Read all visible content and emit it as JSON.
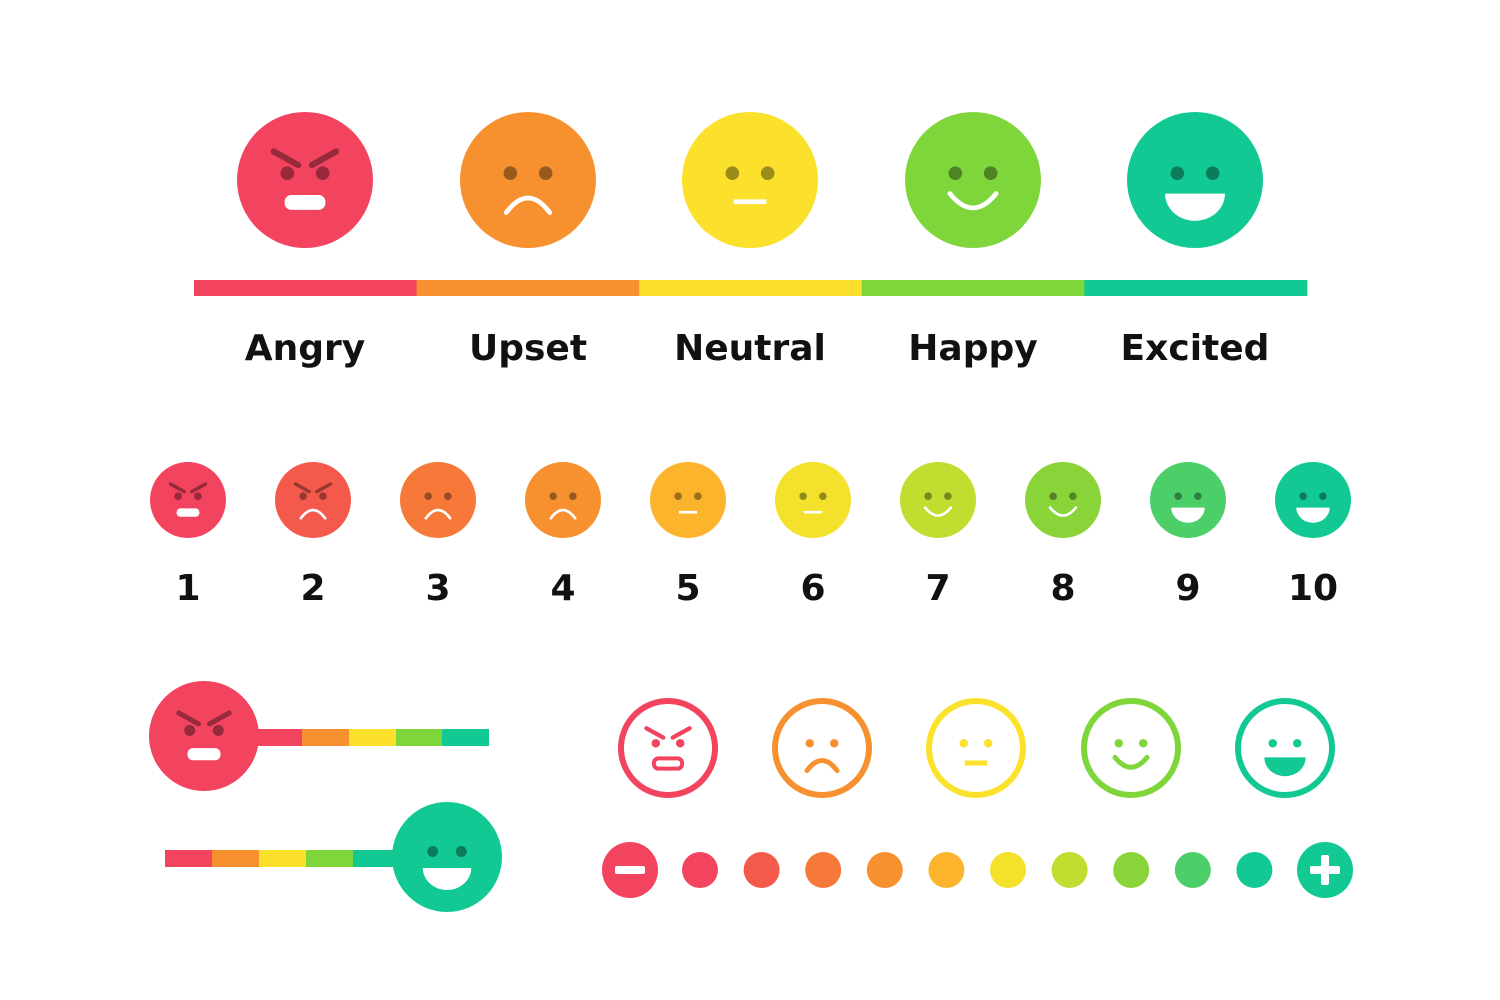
{
  "mood_scale": {
    "labels": [
      "Angry",
      "Upset",
      "Neutral",
      "Happy",
      "Excited"
    ]
  },
  "rating_scale": {
    "labels": [
      "1",
      "2",
      "3",
      "4",
      "5",
      "6",
      "7",
      "8",
      "9",
      "10"
    ]
  }
}
